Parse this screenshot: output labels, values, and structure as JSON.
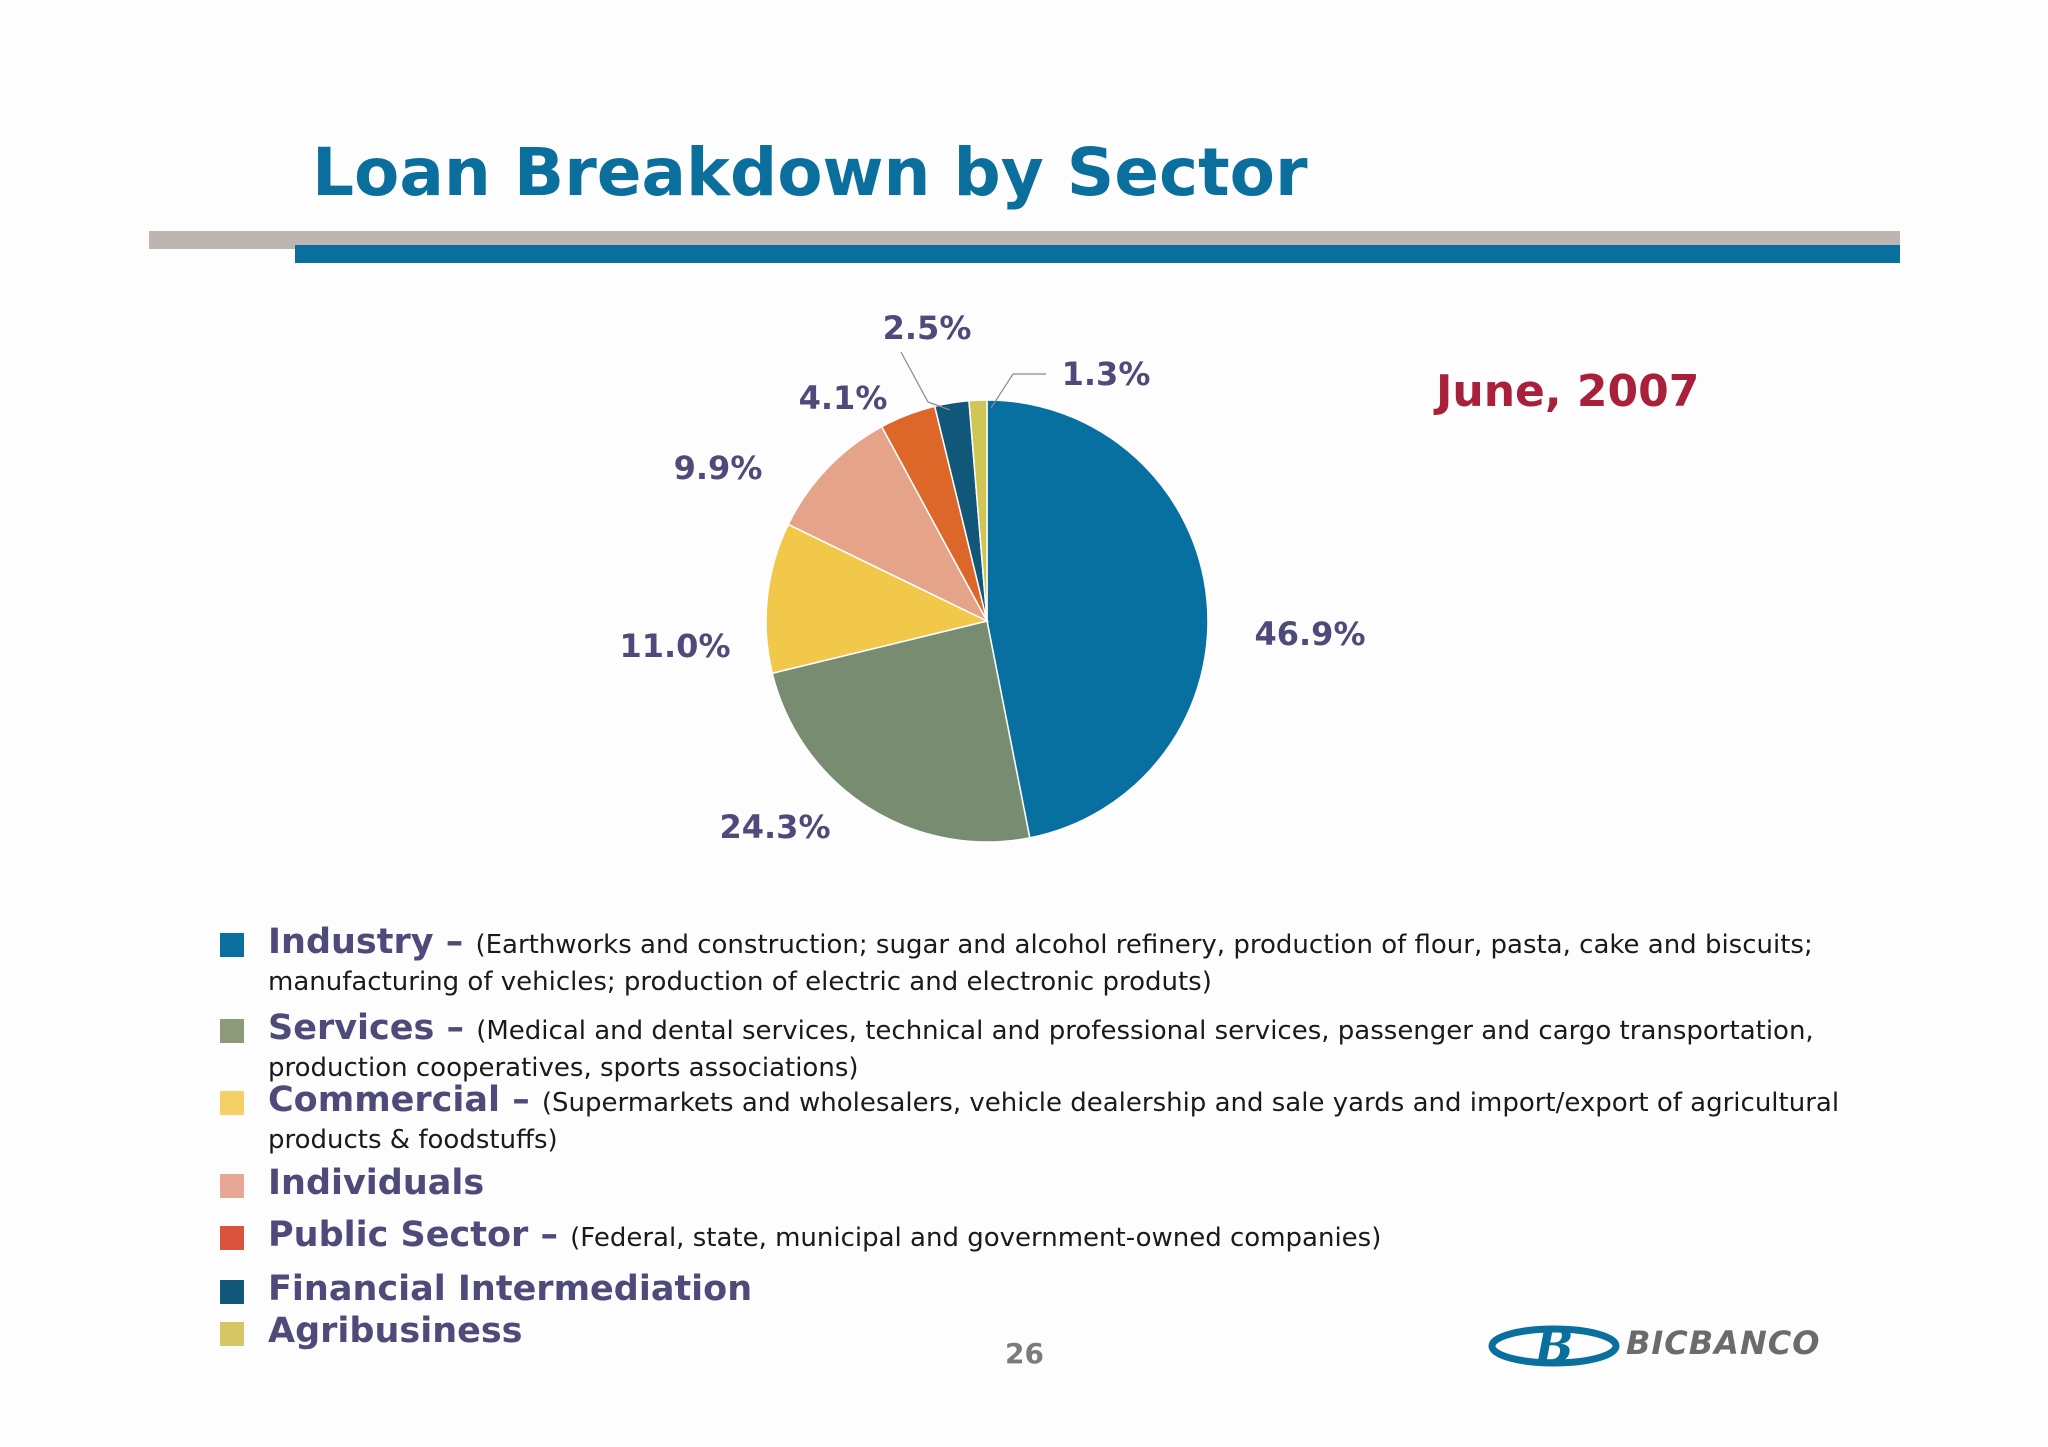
{
  "title": "Loan Breakdown by Sector",
  "date": "June, 2007",
  "page_number": "26",
  "logo_text": "BICBANCO",
  "colors": {
    "title": "#0b6f9e",
    "date": "#a8203a",
    "label": "#4e4a7a",
    "rule_gray": "#bcb5b2",
    "rule_blue": "#0b6f9e"
  },
  "legend": [
    {
      "name": "Industry",
      "sep": " – ",
      "desc": "(Earthworks and construction; sugar and alcohol refinery, production of flour, pasta, cake and biscuits; manufacturing of vehicles; production of electric and electronic produts)",
      "color": "#0b6f9e"
    },
    {
      "name": "Services",
      "sep": " – ",
      "desc": "(Medical and dental services, technical and professional services, passenger and cargo transportation, production cooperatives, sports associations)",
      "color": "#8c9a7a"
    },
    {
      "name": "Commercial",
      "sep": " – ",
      "desc": "(Supermarkets and wholesalers, vehicle dealership and sale yards and import/export of agricultural products & foodstuffs)",
      "color": "#f5d064"
    },
    {
      "name": "Individuals",
      "sep": "",
      "desc": "",
      "color": "#e9a896"
    },
    {
      "name": "Public Sector",
      "sep": " – ",
      "desc": "(Federal, state, municipal and government-owned companies)",
      "color": "#d9523c"
    },
    {
      "name": "Financial Intermediation",
      "sep": "",
      "desc": "",
      "color": "#11577a"
    },
    {
      "name": "Agribusiness",
      "sep": "",
      "desc": "",
      "color": "#d6c764"
    }
  ],
  "chart_data": {
    "type": "pie",
    "title": "Loan Breakdown by Sector",
    "subtitle": "June, 2007",
    "categories": [
      "Industry",
      "Services",
      "Commercial",
      "Individuals",
      "Public Sector",
      "Financial Intermediation",
      "Agribusiness"
    ],
    "values": [
      46.9,
      24.3,
      11.0,
      9.9,
      4.1,
      2.5,
      1.3
    ],
    "labels": [
      "46.9%",
      "24.3%",
      "11.0%",
      "9.9%",
      "4.1%",
      "2.5%",
      "1.3%"
    ],
    "colors": [
      "#0770a0",
      "#788c72",
      "#f2c84a",
      "#e5a489",
      "#dd6629",
      "#11577a",
      "#cfc655"
    ],
    "start_angle_deg": 0,
    "direction": "clockwise"
  }
}
